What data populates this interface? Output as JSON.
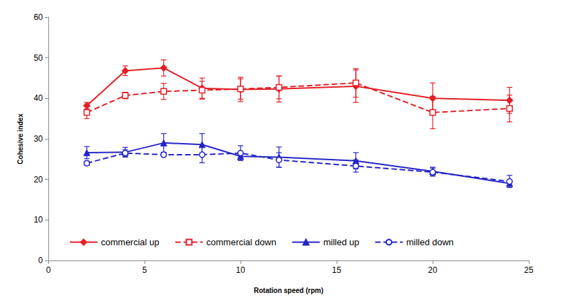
{
  "chart_data": {
    "type": "line",
    "x_label": "Rotation speed (rpm)",
    "y_label": "Cohesive index",
    "x": [
      2,
      4,
      6,
      8,
      10,
      12,
      16,
      20,
      24
    ],
    "xlim": [
      0,
      25
    ],
    "xticks": [
      0,
      5,
      10,
      15,
      20,
      25
    ],
    "ylim": [
      0,
      60
    ],
    "yticks": [
      0,
      10,
      20,
      30,
      40,
      50,
      60
    ],
    "grid": false,
    "legend": "lower left",
    "series": [
      {
        "name": "commercial up",
        "color": "#e41f26",
        "marker": "diamond",
        "line_style": "solid",
        "values": [
          38.2,
          46.8,
          47.5,
          42.5,
          42.2,
          42.3,
          43.0,
          40.0,
          39.5
        ],
        "errors": [
          0.8,
          1.2,
          2.0,
          2.5,
          3.0,
          3.2,
          4.0,
          3.8,
          3.2
        ]
      },
      {
        "name": "commercial down",
        "color": "#e41f26",
        "marker": "open_square",
        "line_style": "dashed",
        "values": [
          36.5,
          40.7,
          41.7,
          42.0,
          42.3,
          42.7,
          43.8,
          36.5,
          37.5
        ],
        "errors": [
          1.5,
          0.8,
          2.0,
          2.2,
          2.5,
          2.8,
          3.5,
          4.0,
          3.3
        ]
      },
      {
        "name": "milled up",
        "color": "#2424c8",
        "marker": "triangle",
        "line_style": "solid",
        "values": [
          26.6,
          26.7,
          29.0,
          28.6,
          25.7,
          25.5,
          24.6,
          22.0,
          19.0
        ],
        "errors": [
          1.5,
          1.2,
          2.3,
          2.7,
          1.0,
          2.5,
          2.0,
          1.0,
          0.5
        ]
      },
      {
        "name": "milled down",
        "color": "#2424c8",
        "marker": "open_circle",
        "line_style": "dashed",
        "values": [
          24.0,
          26.5,
          26.1,
          26.1,
          26.5,
          24.8,
          23.3,
          21.8,
          19.5
        ],
        "errors": [
          0.5,
          0.8,
          0.5,
          2.0,
          1.8,
          1.8,
          1.5,
          1.0,
          1.5
        ]
      }
    ]
  }
}
